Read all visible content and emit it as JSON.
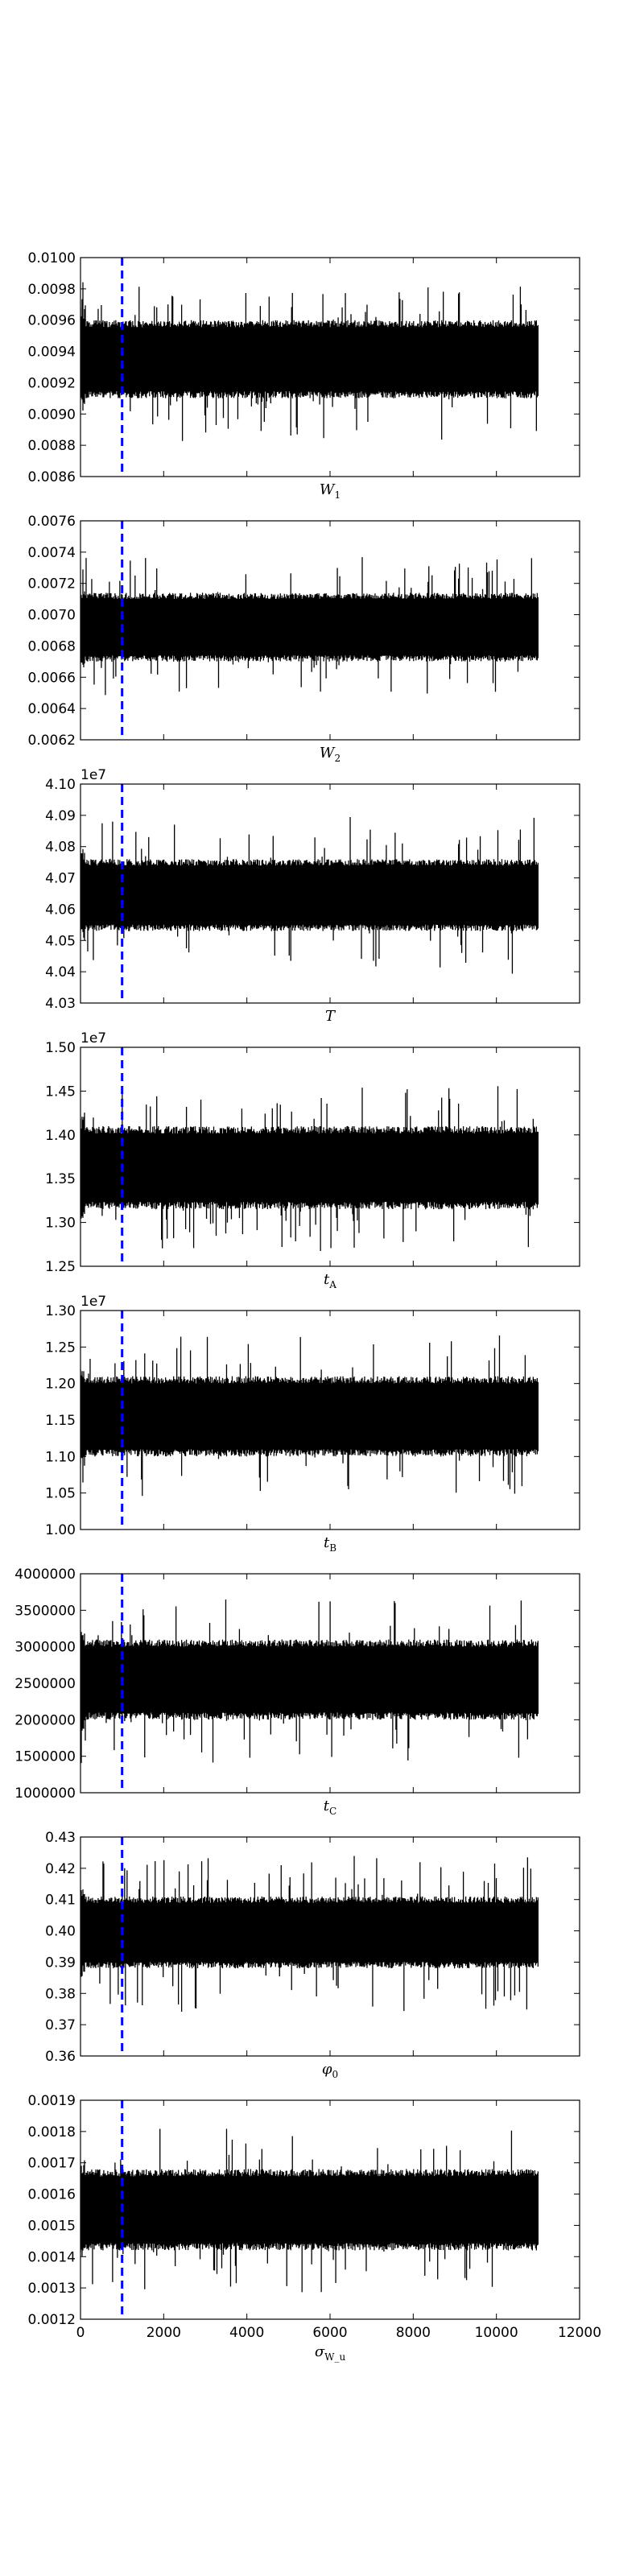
{
  "chart_data": [
    {
      "type": "line",
      "xlabel": "W",
      "xlabel_sub": "1",
      "ylim": [
        0.0086,
        0.01
      ],
      "yticks": [
        "0.0086",
        "0.0088",
        "0.0090",
        "0.0092",
        "0.0094",
        "0.0096",
        "0.0098",
        "0.0100"
      ],
      "offset_label": "",
      "center": 0.00935,
      "band": 0.00025,
      "spike": 0.0004,
      "burn_in": 1000,
      "xlim": [
        0,
        12000
      ],
      "n_samples": 11000,
      "series_color": "#000000",
      "burn_in_color": "#0000ff"
    },
    {
      "type": "line",
      "xlabel": "W",
      "xlabel_sub": "2",
      "ylim": [
        0.0062,
        0.0076
      ],
      "yticks": [
        "0.0062",
        "0.0064",
        "0.0066",
        "0.0068",
        "0.0070",
        "0.0072",
        "0.0074",
        "0.0076"
      ],
      "offset_label": "",
      "center": 0.00692,
      "band": 0.00022,
      "spike": 0.00035,
      "burn_in": 1000,
      "xlim": [
        0,
        12000
      ],
      "n_samples": 11000,
      "series_color": "#000000",
      "burn_in_color": "#0000ff"
    },
    {
      "type": "line",
      "xlabel": "T",
      "xlabel_sub": "",
      "ylim": [
        4.03,
        4.1
      ],
      "yticks": [
        "4.03",
        "4.04",
        "4.05",
        "4.06",
        "4.07",
        "4.08",
        "4.09",
        "4.10"
      ],
      "offset_label": "1e7",
      "center": 4.0645,
      "band": 0.0115,
      "spike": 0.02,
      "burn_in": 1000,
      "xlim": [
        0,
        12000
      ],
      "n_samples": 11000,
      "series_color": "#000000",
      "burn_in_color": "#0000ff"
    },
    {
      "type": "line",
      "xlabel": "t",
      "xlabel_sub": "A",
      "ylim": [
        1.25,
        1.5
      ],
      "yticks": [
        "1.25",
        "1.30",
        "1.35",
        "1.40",
        "1.45",
        "1.50"
      ],
      "offset_label": "1e7",
      "center": 1.3625,
      "band": 0.0475,
      "spike": 0.075,
      "burn_in": 1000,
      "xlim": [
        0,
        12000
      ],
      "n_samples": 11000,
      "series_color": "#000000",
      "burn_in_color": "#0000ff"
    },
    {
      "type": "line",
      "xlabel": "t",
      "xlabel_sub": "B",
      "ylim": [
        1.0,
        1.3
      ],
      "yticks": [
        "1.00",
        "1.05",
        "1.10",
        "1.15",
        "1.20",
        "1.25",
        "1.30"
      ],
      "offset_label": "1e7",
      "center": 1.155,
      "band": 0.055,
      "spike": 0.085,
      "burn_in": 1000,
      "xlim": [
        0,
        12000
      ],
      "n_samples": 11000,
      "series_color": "#000000",
      "burn_in_color": "#0000ff"
    },
    {
      "type": "line",
      "xlabel": "t",
      "xlabel_sub": "C",
      "ylim": [
        1000000,
        4000000
      ],
      "yticks": [
        "1000000",
        "1500000",
        "2000000",
        "2500000",
        "3000000",
        "3500000",
        "4000000"
      ],
      "offset_label": "",
      "center": 2550000,
      "band": 550000,
      "spike": 900000,
      "burn_in": 1000,
      "xlim": [
        0,
        12000
      ],
      "n_samples": 11000,
      "series_color": "#000000",
      "burn_in_color": "#0000ff"
    },
    {
      "type": "line",
      "xlabel": "φ",
      "xlabel_sub": "0",
      "ylim": [
        0.36,
        0.43
      ],
      "yticks": [
        "0.36",
        "0.37",
        "0.38",
        "0.39",
        "0.40",
        "0.41",
        "0.42",
        "0.43"
      ],
      "offset_label": "",
      "center": 0.3995,
      "band": 0.0115,
      "spike": 0.02,
      "burn_in": 1000,
      "xlim": [
        0,
        12000
      ],
      "n_samples": 11000,
      "series_color": "#000000",
      "burn_in_color": "#0000ff"
    },
    {
      "type": "line",
      "xlabel": "σ",
      "xlabel_sub": "W_u",
      "ylim": [
        0.0012,
        0.0019
      ],
      "yticks": [
        "0.0012",
        "0.0013",
        "0.0014",
        "0.0015",
        "0.0016",
        "0.0017",
        "0.0018",
        "0.0019"
      ],
      "offset_label": "",
      "center": 0.00155,
      "band": 0.00013,
      "spike": 0.00022,
      "burn_in": 1000,
      "xlim": [
        0,
        12000
      ],
      "xticks": [
        "0",
        "2000",
        "4000",
        "6000",
        "8000",
        "10000",
        "12000"
      ],
      "n_samples": 11000,
      "series_color": "#000000",
      "burn_in_color": "#0000ff"
    }
  ]
}
